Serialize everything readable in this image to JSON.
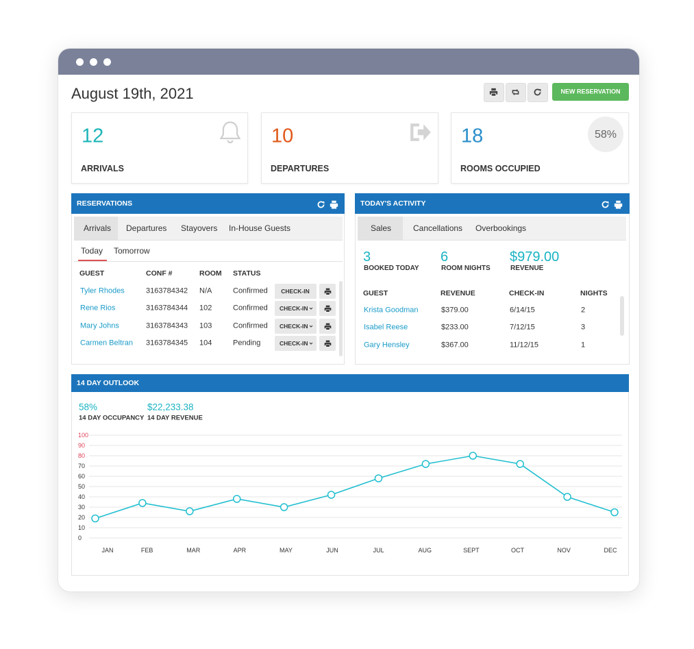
{
  "header": {
    "date": "August 19th, 2021",
    "new_reservation": "NEW RESERVATION"
  },
  "stats": [
    {
      "value": 12,
      "label": "ARRIVALS"
    },
    {
      "value": 10,
      "label": "DEPARTURES"
    },
    {
      "value": 18,
      "label": "ROOMS OCCUPIED",
      "badge": "58%"
    }
  ],
  "reservations": {
    "title": "RESERVATIONS",
    "tabs": [
      "Arrivals",
      "Departures",
      "Stayovers",
      "In-House Guests"
    ],
    "subtabs": [
      "Today",
      "Tomorrow"
    ],
    "columns": [
      "GUEST",
      "CONF #",
      "ROOM",
      "STATUS"
    ],
    "rows": [
      [
        "Tyler Rhodes",
        "3163784342",
        "N/A",
        "Confirmed"
      ],
      [
        "Rene Rios",
        "3163784344",
        "102",
        "Confirmed"
      ],
      [
        "Mary Johns",
        "3163784343",
        "103",
        "Confirmed"
      ],
      [
        "Carmen Beltran",
        "3163784345",
        "104",
        "Pending"
      ]
    ],
    "action": "CHECK-IN"
  },
  "activity": {
    "title": "TODAY'S ACTIVITY",
    "tabs": [
      "Sales",
      "Cancellations",
      "Overbookings"
    ],
    "summary": [
      {
        "value": "3",
        "label": "BOOKED TODAY"
      },
      {
        "value": "6",
        "label": "ROOM NIGHTS"
      },
      {
        "value": "$979.00",
        "label": "REVENUE"
      }
    ],
    "columns": [
      "GUEST",
      "REVENUE",
      "CHECK-IN",
      "NIGHTS"
    ],
    "rows": [
      [
        "Krista Goodman",
        "$379.00",
        "6/14/15",
        "2"
      ],
      [
        "Isabel Reese",
        "$233.00",
        "7/12/15",
        "3"
      ],
      [
        "Gary Hensley",
        "$367.00",
        "11/12/15",
        "1"
      ]
    ]
  },
  "outlook": {
    "title": "14 DAY OUTLOOK",
    "summary": [
      {
        "value": "58%",
        "label": "14 DAY OCCUPANCY"
      },
      {
        "value": "$22,233.38",
        "label": "14 DAY REVENUE"
      }
    ]
  },
  "chart_data": {
    "type": "line",
    "categories": [
      "JAN",
      "FEB",
      "MAR",
      "APR",
      "MAY",
      "JUN",
      "JUL",
      "AUG",
      "SEPT",
      "OCT",
      "NOV",
      "DEC"
    ],
    "values": [
      19,
      34,
      26,
      38,
      30,
      42,
      58,
      72,
      80,
      72,
      40,
      25
    ],
    "color": "#22bfd0",
    "ylim": [
      0,
      100
    ],
    "yticks": [
      0,
      10,
      20,
      30,
      40,
      50,
      60,
      70,
      80,
      90,
      100
    ],
    "ytick_colors": [
      "#333333",
      "#333333",
      "#333333",
      "#333333",
      "#333333",
      "#333333",
      "#333333",
      "#333333",
      "#e0445a",
      "#e0445a",
      "#e0445a"
    ],
    "grid": true
  }
}
